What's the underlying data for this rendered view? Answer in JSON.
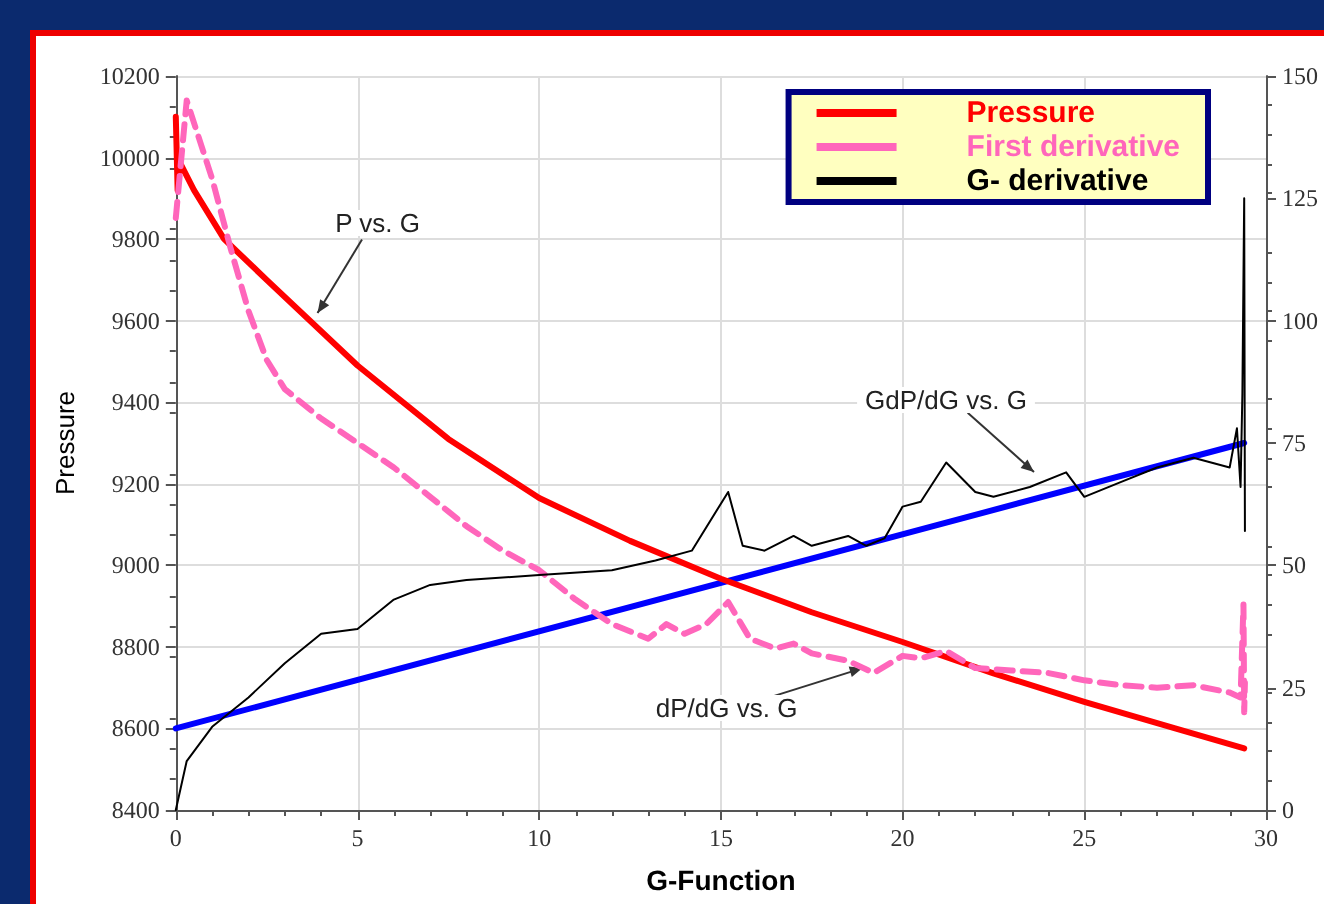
{
  "chart_data": {
    "type": "line",
    "xlabel": "G-Function",
    "ylabel": "Pressure",
    "xlim": [
      0,
      30
    ],
    "xticks": [
      0,
      5,
      10,
      15,
      20,
      25,
      30
    ],
    "ylim": [
      8400,
      10200
    ],
    "yticks": [
      8400,
      8600,
      8800,
      9000,
      9200,
      9400,
      9600,
      9800,
      10000,
      10200
    ],
    "y2lim": [
      0,
      150
    ],
    "y2ticks": [
      0,
      25,
      50,
      75,
      100,
      125,
      150
    ],
    "grid": true,
    "legend": "top right",
    "marker": "none",
    "annotations": [
      {
        "text": "P vs. G",
        "x": 3.9,
        "y": 9619
      },
      "GdP/dG vs. G",
      {
        "text": "dP/dG vs. G",
        "x": 18.9,
        "y": 8748
      }
    ],
    "series": [
      {
        "name": "Pressure",
        "color": "#ff0000",
        "line_style": "solid",
        "x": [
          0,
          0.05,
          0.1,
          0.5,
          1.33,
          2.5,
          5,
          7.5,
          10,
          12.5,
          15,
          17.5,
          20,
          22.5,
          25,
          27.5,
          29.4
        ],
        "values": [
          10100,
          9920,
          9990,
          9920,
          9800,
          9700,
          9490,
          9310,
          9165,
          9060,
          8967,
          8885,
          8812,
          8735,
          8665,
          8600,
          8551
        ]
      },
      {
        "name": "First derivative",
        "color": "#ff66bb",
        "axis": "y2",
        "line_style": "dashed",
        "x": [
          0,
          0.3,
          1,
          1.5,
          2,
          2.5,
          3,
          4,
          5,
          6,
          7,
          8,
          9,
          10,
          11,
          12,
          13,
          13.5,
          14,
          14.6,
          15.2,
          15.8,
          16.5,
          17,
          17.5,
          18.5,
          19.2,
          20,
          20.5,
          21.2,
          22,
          23,
          24,
          25,
          26,
          27,
          28,
          29,
          29.3,
          29.38,
          29.4,
          29.42
        ],
        "values": [
          121,
          145,
          129,
          115,
          102,
          92,
          86,
          80,
          75,
          70,
          64,
          58,
          53,
          49,
          43,
          38,
          35,
          38,
          36,
          38,
          42.5,
          35,
          33,
          34,
          32,
          30.5,
          28,
          31.5,
          31,
          32.5,
          29,
          28.5,
          28,
          26.5,
          25.5,
          25,
          25.5,
          24,
          23,
          42,
          20,
          26
        ]
      },
      {
        "name": "G- derivative",
        "color": "#000000",
        "axis": "y2",
        "line_style": "solid",
        "x": [
          0,
          0.3,
          1,
          2,
          3,
          4,
          5,
          6,
          7,
          8,
          10,
          12,
          13.2,
          14.2,
          15.2,
          15.6,
          16.2,
          17,
          17.5,
          18.5,
          19,
          19.5,
          20,
          20.5,
          21.2,
          22,
          22.5,
          23.5,
          24.5,
          25,
          26,
          27,
          28,
          29,
          29.2,
          29.3,
          29.35,
          29.4,
          29.42
        ],
        "values": [
          0,
          10,
          17,
          23,
          30,
          36,
          37,
          43,
          46,
          47,
          48,
          49,
          51,
          53,
          65,
          54,
          53,
          56,
          54,
          56,
          54,
          55.5,
          62,
          63,
          71,
          65,
          64,
          66,
          69,
          64,
          67,
          70,
          72,
          70,
          78,
          66,
          85,
          125,
          57
        ]
      },
      {
        "color": "#0000ff",
        "line_style": "solid",
        "x": [
          0,
          29.4
        ],
        "values": [
          8600,
          9300
        ]
      }
    ]
  }
}
